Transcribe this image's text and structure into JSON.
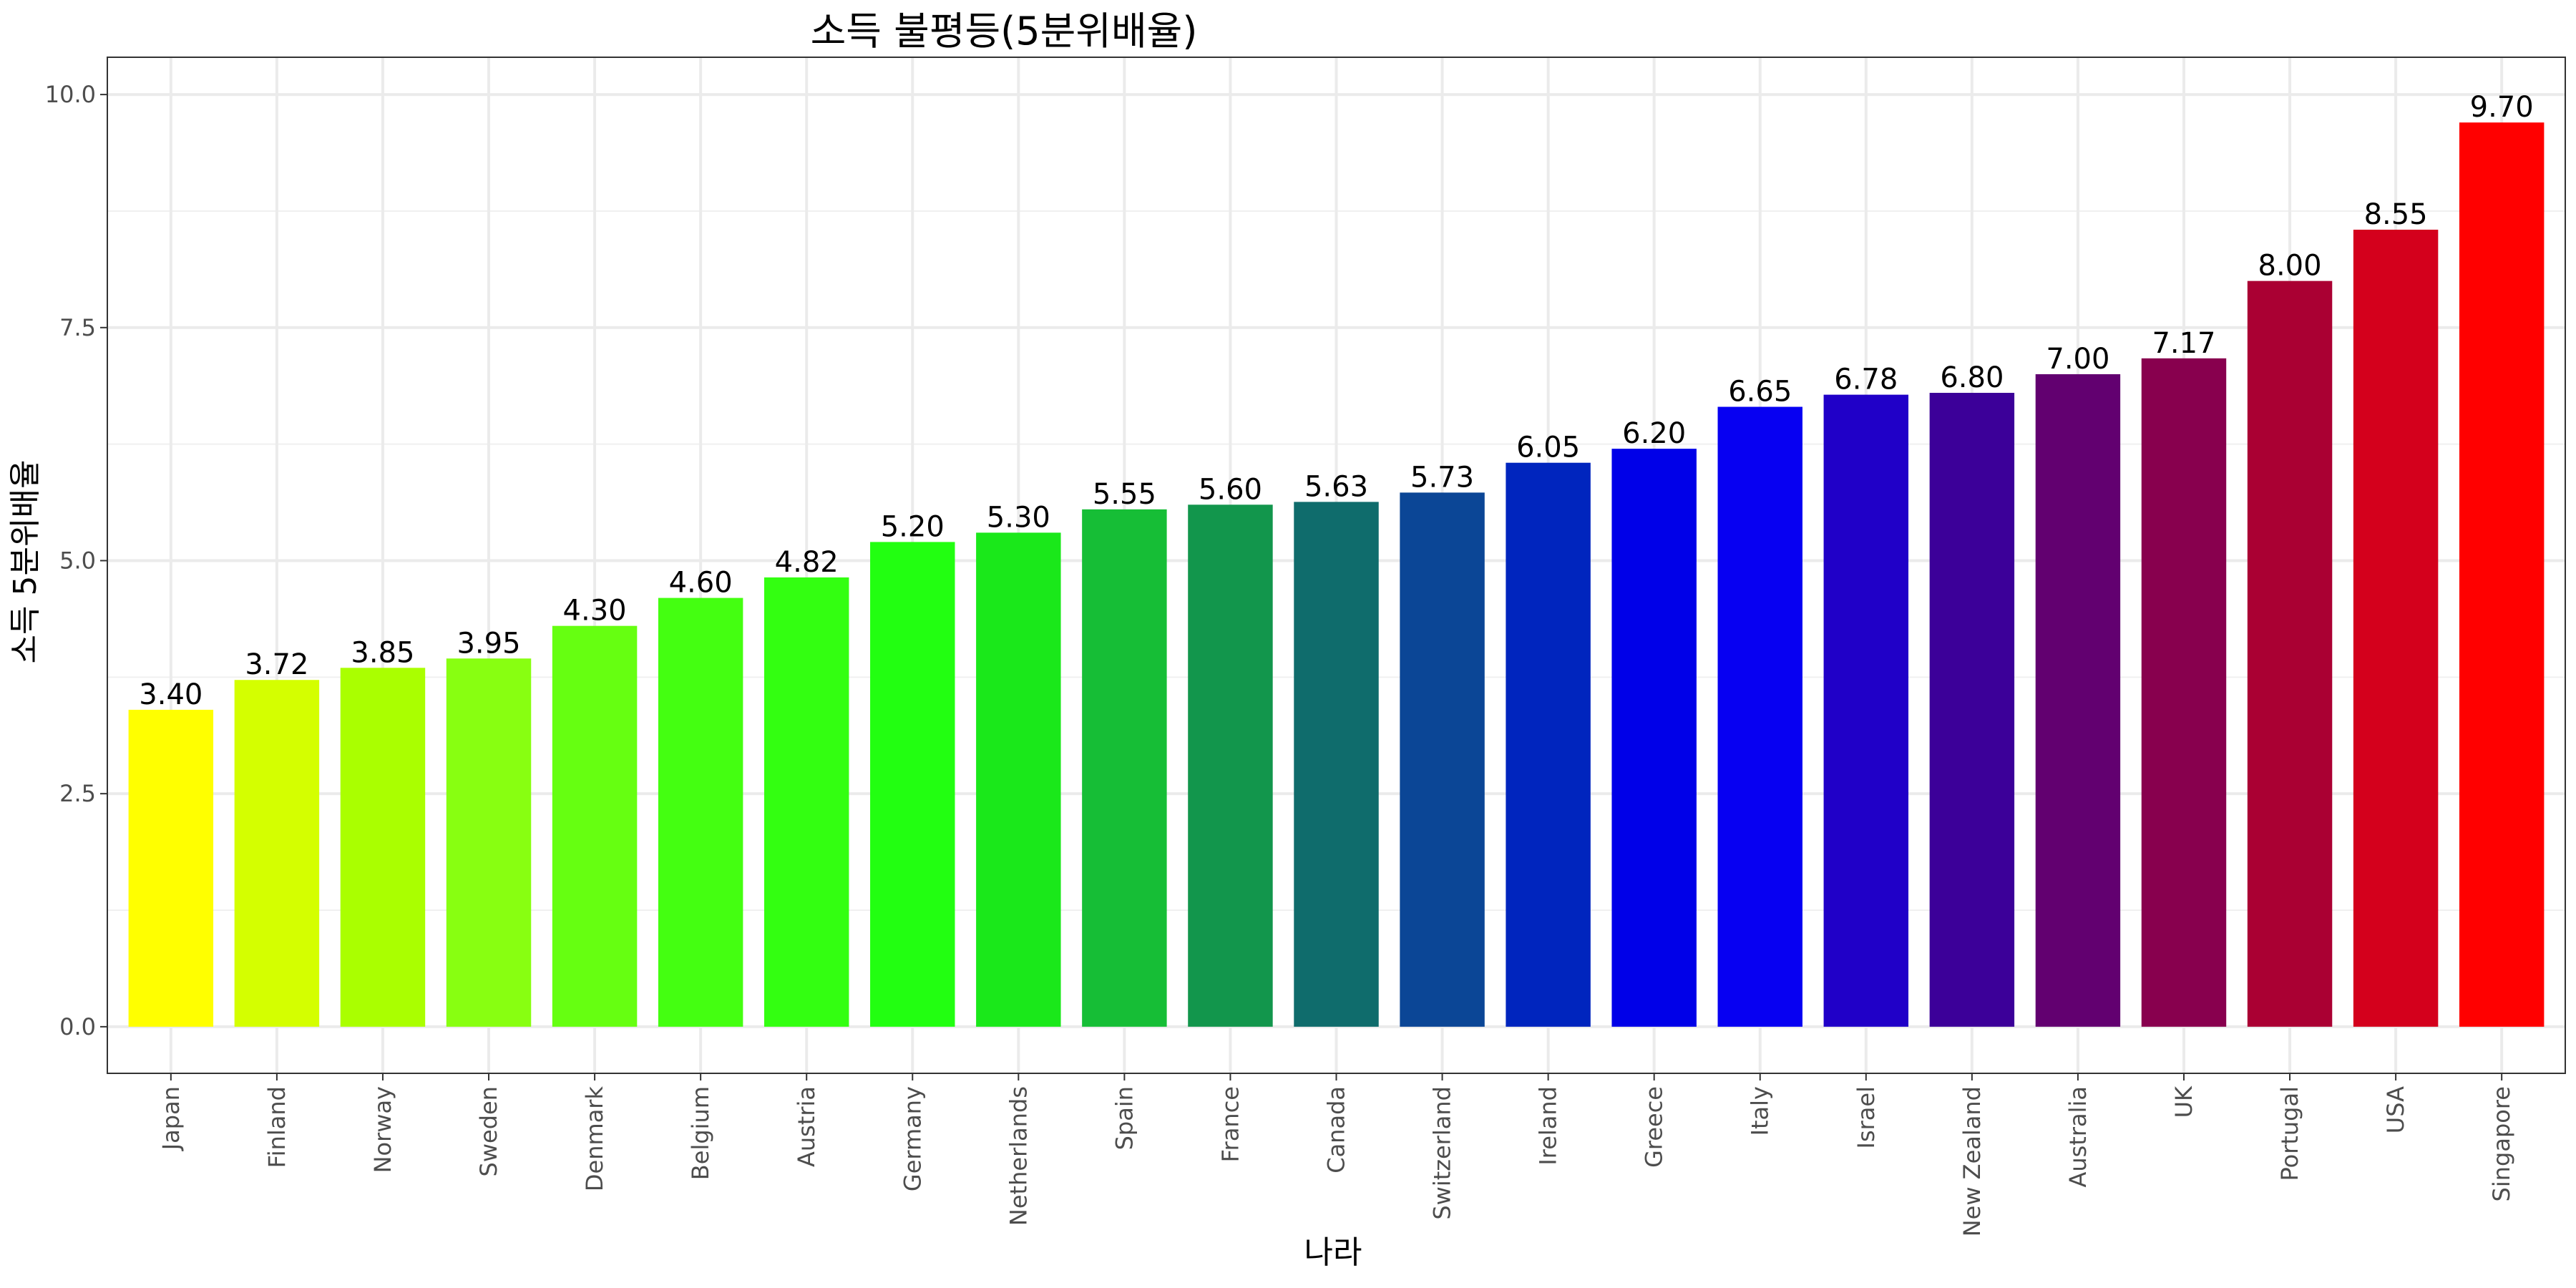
{
  "chart_data": {
    "type": "bar",
    "title": "소득 불평등(5분위배율)",
    "xlabel": "나라",
    "ylabel": "소득 5분위배율",
    "ylim": [
      -0.5,
      10.4
    ],
    "yticks": [
      0.0,
      2.5,
      5.0,
      7.5,
      10.0
    ],
    "ytick_labels": [
      "0.0",
      "2.5",
      "5.0",
      "7.5",
      "10.0"
    ],
    "grid": true,
    "legend": "none",
    "categories": [
      "Japan",
      "Finland",
      "Norway",
      "Sweden",
      "Denmark",
      "Belgium",
      "Austria",
      "Germany",
      "Netherlands",
      "Spain",
      "France",
      "Canada",
      "Switzerland",
      "Ireland",
      "Greece",
      "Italy",
      "Israel",
      "New Zealand",
      "Australia",
      "UK",
      "Portugal",
      "USA",
      "Singapore"
    ],
    "values": [
      3.4,
      3.72,
      3.85,
      3.95,
      4.3,
      4.6,
      4.82,
      5.2,
      5.3,
      5.55,
      5.6,
      5.63,
      5.73,
      6.05,
      6.2,
      6.65,
      6.78,
      6.8,
      7.0,
      7.17,
      8.0,
      8.55,
      9.7
    ],
    "value_labels": [
      "3.40",
      "3.72",
      "3.85",
      "3.95",
      "4.30",
      "4.60",
      "4.82",
      "5.20",
      "5.30",
      "5.55",
      "5.60",
      "5.63",
      "5.73",
      "6.05",
      "6.20",
      "6.65",
      "6.78",
      "6.80",
      "7.00",
      "7.17",
      "8.00",
      "8.55",
      "9.70"
    ],
    "colors": [
      "#FFFF00",
      "#D4FF00",
      "#AAFF00",
      "#88FF11",
      "#66FF11",
      "#44FF11",
      "#33FF11",
      "#22FF11",
      "#1AE81A",
      "#16BE36",
      "#12964C",
      "#0F6C6C",
      "#0B4696",
      "#0025BE",
      "#0000E8",
      "#0700F2",
      "#2000C8",
      "#3C0099",
      "#620070",
      "#88004E",
      "#AA0033",
      "#D4001C",
      "#FF0000"
    ]
  }
}
